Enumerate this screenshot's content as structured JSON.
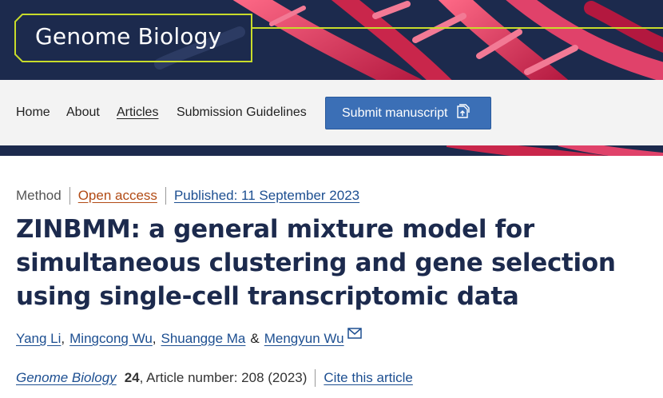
{
  "header": {
    "journal_name": "Genome Biology",
    "colors": {
      "navy": "#1c2a4d",
      "accent_lime": "#c8dc2a",
      "dna_red": "#d8345a"
    }
  },
  "nav": {
    "items": [
      {
        "label": "Home",
        "active": false
      },
      {
        "label": "About",
        "active": false
      },
      {
        "label": "Articles",
        "active": true
      },
      {
        "label": "Submission Guidelines",
        "active": false
      }
    ],
    "submit_label": "Submit manuscript",
    "submit_icon": "upload-document-icon"
  },
  "article": {
    "type": "Method",
    "access": "Open access",
    "published": "Published: 11 September 2023",
    "title_lines": [
      "ZINBMM: a general mixture model for",
      "simultaneous clustering and gene selection",
      "using single-cell transcriptomic data"
    ],
    "authors": [
      "Yang Li",
      "Mingcong Wu",
      "Shuangge Ma",
      "Mengyun Wu"
    ],
    "author_conjunction": "&",
    "contact_icon": "mail-icon",
    "journal": "Genome Biology",
    "volume": "24",
    "article_number": ", Article number: 208 (2023)",
    "cite_label": "Cite this article"
  }
}
